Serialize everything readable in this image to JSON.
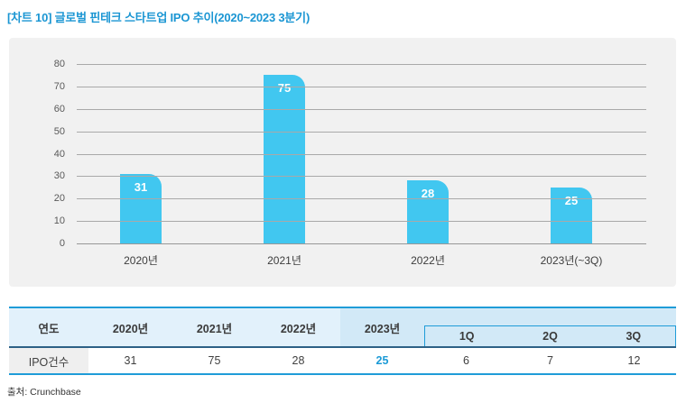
{
  "title": "[차트 10] 글로벌 핀테크 스타트업 IPO 추이(2020~2023 3분기)",
  "source": "출처: Crunchbase",
  "colors": {
    "accent_blue": "#1b9ad6",
    "bar_fill": "#41c7f0",
    "panel_background": "#f1f1f1",
    "grid_line": "#a9a9a9",
    "header_light_blue": "#e2f1fb",
    "header_dark_blue": "#d2e9f7",
    "header_separator": "#2d6186",
    "row_label_gray": "#efefef",
    "value_label_white": "#ffffff"
  },
  "chart_data": {
    "type": "bar",
    "title": "[차트 10] 글로벌 핀테크 스타트업 IPO 추이(2020~2023 3분기)",
    "categories": [
      "2020년",
      "2021년",
      "2022년",
      "2023년(~3Q)"
    ],
    "values": [
      31,
      75,
      28,
      25
    ],
    "xlabel": "",
    "ylabel": "",
    "ylim": [
      0,
      80
    ],
    "ytick_step": 10,
    "grid": true,
    "legend": false,
    "bar_color": "#41c7f0",
    "value_labels_inside_bars": true
  },
  "table": {
    "col_year_header": "연도",
    "years": [
      "2020년",
      "2021년",
      "2022년"
    ],
    "year_2023": "2023년",
    "quarters": [
      "1Q",
      "2Q",
      "3Q"
    ],
    "row_label": "IPO건수",
    "year_values": [
      "31",
      "75",
      "28"
    ],
    "value_2023": "25",
    "quarter_values": [
      "6",
      "7",
      "12"
    ]
  }
}
